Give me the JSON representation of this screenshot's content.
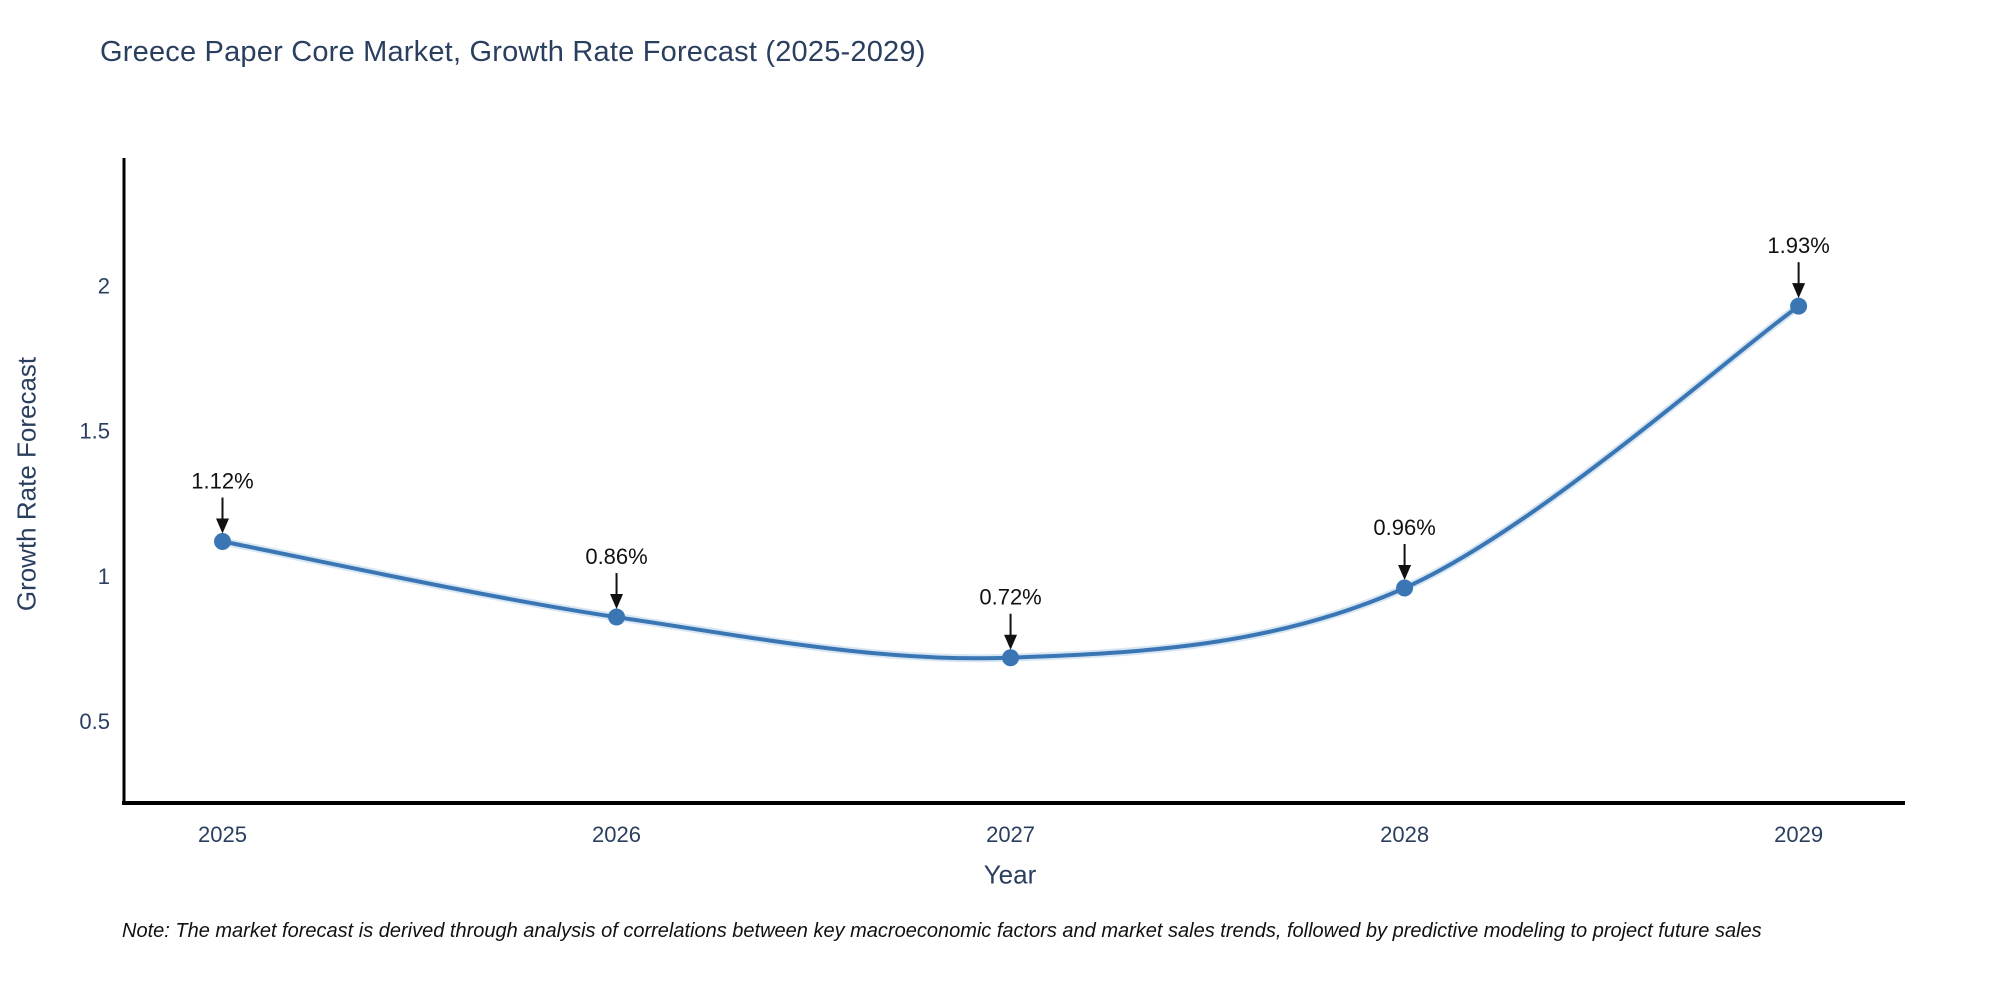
{
  "chart": {
    "title": "Greece Paper Core Market, Growth Rate Forecast (2025-2029)",
    "xlabel": "Year",
    "ylabel": "Growth Rate Forecast",
    "note": "Note: The market forecast is derived through analysis of correlations between key macroeconomic factors and market sales trends, followed by predictive modeling to project future sales"
  },
  "chart_data": {
    "type": "line",
    "title": "Greece Paper Core Market, Growth Rate Forecast (2025-2029)",
    "xlabel": "Year",
    "ylabel": "Growth Rate Forecast",
    "x": [
      2025,
      2026,
      2027,
      2028,
      2029
    ],
    "values": [
      1.12,
      0.86,
      0.72,
      0.96,
      1.93
    ],
    "point_labels": [
      "1.12%",
      "0.86%",
      "0.72%",
      "0.96%",
      "1.93%"
    ],
    "x_tick_labels": [
      "2025",
      "2026",
      "2027",
      "2028",
      "2029"
    ],
    "y_ticks": [
      0.5,
      1,
      1.5,
      2
    ],
    "y_tick_labels": [
      "0.5",
      "1",
      "1.5",
      "2"
    ],
    "xlim": [
      2024.75,
      2029.27
    ],
    "ylim": [
      0.22,
      2.44
    ],
    "line_shape": "spline",
    "grid": false,
    "legend": "none",
    "colors": {
      "line": "#3b76b4",
      "line_halo": "#8cb8de",
      "marker": "#3b76b4",
      "annotation": "#111111",
      "axis_line": "#000000",
      "tick_label": "#2a3f5f",
      "title": "#2a3f5f",
      "background": "#ffffff"
    }
  }
}
